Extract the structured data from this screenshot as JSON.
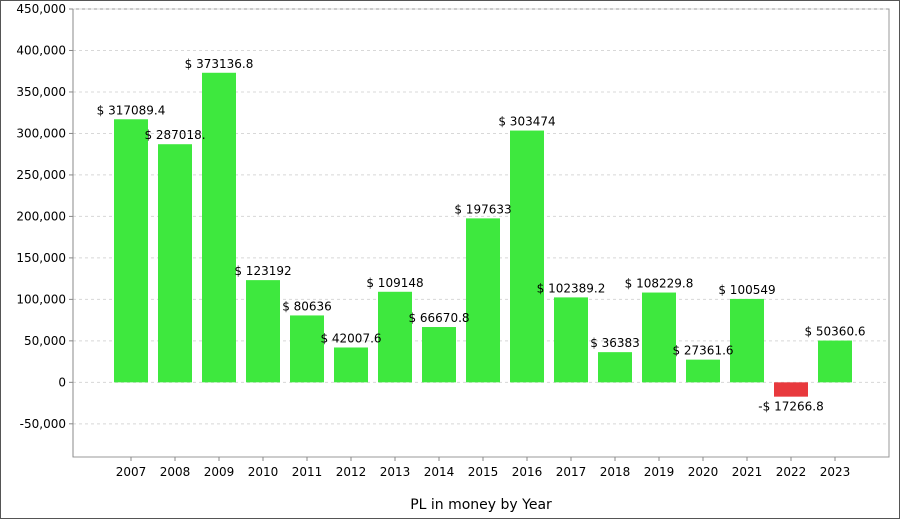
{
  "chart_data": {
    "type": "bar",
    "title": "",
    "xlabel": "PL in money by Year",
    "ylabel": "",
    "ylim": [
      -90000,
      450000
    ],
    "yticks": [
      -50000,
      0,
      50000,
      100000,
      150000,
      200000,
      250000,
      300000,
      350000,
      400000,
      450000
    ],
    "ytick_labels": [
      "-50,000",
      "0",
      "50,000",
      "100,000",
      "150,000",
      "200,000",
      "250,000",
      "300,000",
      "350,000",
      "400,000",
      "450,000"
    ],
    "grid": true,
    "legend": "none",
    "categories": [
      "2007",
      "2008",
      "2009",
      "2010",
      "2011",
      "2012",
      "2013",
      "2014",
      "2015",
      "2016",
      "2017",
      "2018",
      "2019",
      "2020",
      "2021",
      "2022",
      "2023"
    ],
    "values": [
      317089.4,
      287018,
      373136.8,
      123192,
      80636,
      42007.6,
      109148,
      66670.8,
      197633,
      303474,
      102389.2,
      36383,
      108229.8,
      27361.6,
      100549,
      -17266.8,
      50360.6
    ],
    "data_labels": [
      "$ 317089.4",
      "$ 287018.",
      "$ 373136.8",
      "$ 123192",
      "$ 80636",
      "$ 42007.6",
      "$ 109148",
      "$ 66670.8",
      "$ 197633",
      "$ 303474",
      "$ 102389.2",
      "$ 36383",
      "$ 108229.8",
      "$ 27361.6",
      "$ 100549",
      "-$ 17266.8",
      "$ 50360.6"
    ],
    "colors": {
      "positive": "#3EE83E",
      "negative": "#E8393D",
      "grid": "#D8D8D8",
      "axis": "#888888",
      "plot_border": "#999999"
    }
  }
}
